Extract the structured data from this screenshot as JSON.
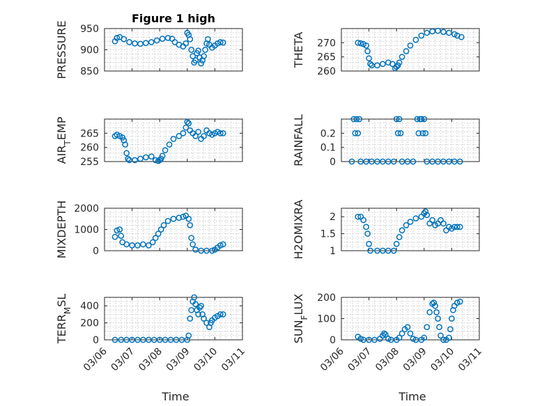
{
  "chart_data": [
    {
      "type": "scatter",
      "title": "Figure 1 high",
      "ylabel": "PRESSURE",
      "ylim": [
        850,
        950
      ],
      "yticks": [
        850,
        900,
        950
      ],
      "color": "#0072bd",
      "points": [
        [
          6.38,
          920
        ],
        [
          6.45,
          928
        ],
        [
          6.55,
          930
        ],
        [
          6.7,
          925
        ],
        [
          6.9,
          918
        ],
        [
          7.1,
          915
        ],
        [
          7.3,
          914
        ],
        [
          7.5,
          916
        ],
        [
          7.7,
          918
        ],
        [
          7.9,
          922
        ],
        [
          8.1,
          926
        ],
        [
          8.3,
          928
        ],
        [
          8.45,
          926
        ],
        [
          8.55,
          918
        ],
        [
          8.7,
          912
        ],
        [
          8.85,
          908
        ],
        [
          8.95,
          915
        ],
        [
          9.0,
          940
        ],
        [
          9.05,
          935
        ],
        [
          9.1,
          925
        ],
        [
          9.15,
          900
        ],
        [
          9.2,
          885
        ],
        [
          9.25,
          870
        ],
        [
          9.3,
          875
        ],
        [
          9.35,
          892
        ],
        [
          9.4,
          898
        ],
        [
          9.45,
          882
        ],
        [
          9.5,
          868
        ],
        [
          9.55,
          875
        ],
        [
          9.6,
          885
        ],
        [
          9.65,
          900
        ],
        [
          9.7,
          915
        ],
        [
          9.75,
          925
        ],
        [
          9.8,
          912
        ],
        [
          9.9,
          905
        ],
        [
          10.0,
          910
        ],
        [
          10.1,
          915
        ],
        [
          10.2,
          918
        ],
        [
          10.3,
          917
        ]
      ]
    },
    {
      "type": "scatter",
      "ylabel": "THETA",
      "ylim": [
        260,
        275
      ],
      "yticks": [
        260,
        265,
        270
      ],
      "color": "#0072bd",
      "points": [
        [
          6.6,
          270
        ],
        [
          6.7,
          269.8
        ],
        [
          6.8,
          269.5
        ],
        [
          6.9,
          269
        ],
        [
          6.95,
          267
        ],
        [
          7.0,
          264.5
        ],
        [
          7.05,
          262.5
        ],
        [
          7.1,
          262
        ],
        [
          7.3,
          262
        ],
        [
          7.5,
          262.5
        ],
        [
          7.7,
          263
        ],
        [
          7.85,
          262.5
        ],
        [
          7.95,
          261
        ],
        [
          8.0,
          261.5
        ],
        [
          8.05,
          262
        ],
        [
          8.1,
          263
        ],
        [
          8.2,
          265
        ],
        [
          8.35,
          267
        ],
        [
          8.5,
          269
        ],
        [
          8.7,
          271
        ],
        [
          8.9,
          272.5
        ],
        [
          9.1,
          273.5
        ],
        [
          9.3,
          274
        ],
        [
          9.5,
          274.2
        ],
        [
          9.7,
          273.8
        ],
        [
          9.9,
          273.5
        ],
        [
          10.1,
          273
        ],
        [
          10.2,
          272.5
        ],
        [
          10.35,
          272
        ]
      ]
    },
    {
      "type": "scatter",
      "ylabel": "AIR_TEMP",
      "ylim": [
        255,
        270
      ],
      "yticks": [
        255,
        260,
        265
      ],
      "color": "#0072bd",
      "points": [
        [
          6.38,
          264
        ],
        [
          6.45,
          264.5
        ],
        [
          6.55,
          264
        ],
        [
          6.65,
          263.5
        ],
        [
          6.7,
          262.5
        ],
        [
          6.75,
          261
        ],
        [
          6.8,
          258
        ],
        [
          6.85,
          256
        ],
        [
          6.9,
          255.5
        ],
        [
          7.1,
          255.5
        ],
        [
          7.3,
          256
        ],
        [
          7.5,
          256.5
        ],
        [
          7.7,
          256.8
        ],
        [
          7.85,
          255.5
        ],
        [
          7.95,
          255.2
        ],
        [
          8.0,
          255.5
        ],
        [
          8.05,
          256
        ],
        [
          8.1,
          257
        ],
        [
          8.2,
          259
        ],
        [
          8.35,
          261
        ],
        [
          8.5,
          263
        ],
        [
          8.7,
          264
        ],
        [
          8.85,
          265
        ],
        [
          8.95,
          267
        ],
        [
          9.0,
          269
        ],
        [
          9.05,
          268.5
        ],
        [
          9.1,
          266
        ],
        [
          9.2,
          265
        ],
        [
          9.3,
          264
        ],
        [
          9.4,
          265.5
        ],
        [
          9.5,
          263
        ],
        [
          9.6,
          264
        ],
        [
          9.7,
          266
        ],
        [
          9.8,
          265
        ],
        [
          9.9,
          264.5
        ],
        [
          10.0,
          265
        ],
        [
          10.1,
          265.5
        ],
        [
          10.2,
          265
        ],
        [
          10.3,
          265
        ]
      ]
    },
    {
      "type": "scatter",
      "ylabel": "RAINFALL",
      "ylim": [
        0,
        0.3
      ],
      "yticks": [
        0,
        0.1,
        0.2
      ],
      "color": "#0072bd",
      "points": [
        [
          6.38,
          0
        ],
        [
          6.45,
          0.3
        ],
        [
          6.5,
          0.2
        ],
        [
          6.55,
          0.3
        ],
        [
          6.6,
          0.2
        ],
        [
          6.65,
          0.3
        ],
        [
          6.7,
          0
        ],
        [
          6.9,
          0
        ],
        [
          7.1,
          0
        ],
        [
          7.3,
          0
        ],
        [
          7.5,
          0
        ],
        [
          7.7,
          0
        ],
        [
          7.9,
          0
        ],
        [
          8.0,
          0.3
        ],
        [
          8.05,
          0.2
        ],
        [
          8.1,
          0.3
        ],
        [
          8.15,
          0.2
        ],
        [
          8.2,
          0
        ],
        [
          8.4,
          0
        ],
        [
          8.6,
          0
        ],
        [
          8.75,
          0.3
        ],
        [
          8.8,
          0.2
        ],
        [
          8.85,
          0.3
        ],
        [
          8.9,
          0.3
        ],
        [
          8.95,
          0.2
        ],
        [
          9.0,
          0.3
        ],
        [
          9.05,
          0.2
        ],
        [
          9.1,
          0
        ],
        [
          9.3,
          0
        ],
        [
          9.5,
          0
        ],
        [
          9.7,
          0
        ],
        [
          9.9,
          0
        ],
        [
          10.1,
          0
        ],
        [
          10.3,
          0
        ]
      ]
    },
    {
      "type": "scatter",
      "ylabel": "MIXDEPTH",
      "ylim": [
        0,
        2000
      ],
      "yticks": [
        0,
        1000,
        2000
      ],
      "color": "#0072bd",
      "points": [
        [
          6.38,
          650
        ],
        [
          6.45,
          950
        ],
        [
          6.55,
          1000
        ],
        [
          6.6,
          700
        ],
        [
          6.65,
          400
        ],
        [
          6.8,
          300
        ],
        [
          7.0,
          250
        ],
        [
          7.2,
          250
        ],
        [
          7.4,
          300
        ],
        [
          7.6,
          250
        ],
        [
          7.75,
          400
        ],
        [
          7.85,
          600
        ],
        [
          7.95,
          800
        ],
        [
          8.05,
          1000
        ],
        [
          8.15,
          1200
        ],
        [
          8.3,
          1400
        ],
        [
          8.5,
          1500
        ],
        [
          8.7,
          1550
        ],
        [
          8.85,
          1600
        ],
        [
          8.95,
          1650
        ],
        [
          9.05,
          1500
        ],
        [
          9.1,
          1200
        ],
        [
          9.15,
          600
        ],
        [
          9.2,
          300
        ],
        [
          9.3,
          50
        ],
        [
          9.5,
          0
        ],
        [
          9.7,
          0
        ],
        [
          9.9,
          0
        ],
        [
          10.0,
          50
        ],
        [
          10.1,
          150
        ],
        [
          10.2,
          250
        ],
        [
          10.3,
          300
        ]
      ]
    },
    {
      "type": "scatter",
      "ylabel": "H2OMIXRA",
      "ylim": [
        1,
        2.25
      ],
      "yticks": [
        1,
        1.5,
        2
      ],
      "color": "#0072bd",
      "points": [
        [
          6.6,
          2.0
        ],
        [
          6.7,
          2.0
        ],
        [
          6.8,
          1.9
        ],
        [
          6.9,
          1.7
        ],
        [
          6.95,
          1.5
        ],
        [
          7.0,
          1.2
        ],
        [
          7.05,
          1.0
        ],
        [
          7.3,
          1.0
        ],
        [
          7.5,
          1.0
        ],
        [
          7.7,
          1.0
        ],
        [
          7.9,
          1.0
        ],
        [
          8.0,
          1.2
        ],
        [
          8.1,
          1.4
        ],
        [
          8.2,
          1.6
        ],
        [
          8.35,
          1.75
        ],
        [
          8.5,
          1.85
        ],
        [
          8.7,
          1.95
        ],
        [
          8.9,
          2.0
        ],
        [
          9.0,
          2.1
        ],
        [
          9.05,
          2.15
        ],
        [
          9.1,
          2.05
        ],
        [
          9.2,
          1.8
        ],
        [
          9.3,
          1.9
        ],
        [
          9.4,
          1.75
        ],
        [
          9.5,
          1.8
        ],
        [
          9.6,
          1.9
        ],
        [
          9.7,
          1.8
        ],
        [
          9.8,
          1.6
        ],
        [
          9.9,
          1.7
        ],
        [
          10.0,
          1.65
        ],
        [
          10.1,
          1.7
        ],
        [
          10.2,
          1.7
        ],
        [
          10.3,
          1.7
        ]
      ]
    },
    {
      "type": "scatter",
      "ylabel": "TERR_MSL",
      "ylim": [
        0,
        500
      ],
      "yticks": [
        0,
        200,
        400
      ],
      "color": "#0072bd",
      "points": [
        [
          6.38,
          0
        ],
        [
          6.6,
          0
        ],
        [
          6.8,
          0
        ],
        [
          7.0,
          0
        ],
        [
          7.2,
          0
        ],
        [
          7.4,
          0
        ],
        [
          7.6,
          0
        ],
        [
          7.8,
          0
        ],
        [
          8.0,
          0
        ],
        [
          8.2,
          0
        ],
        [
          8.4,
          0
        ],
        [
          8.6,
          0
        ],
        [
          8.8,
          0
        ],
        [
          9.0,
          0
        ],
        [
          9.05,
          50
        ],
        [
          9.1,
          250
        ],
        [
          9.15,
          350
        ],
        [
          9.2,
          450
        ],
        [
          9.25,
          500
        ],
        [
          9.3,
          420
        ],
        [
          9.35,
          350
        ],
        [
          9.4,
          300
        ],
        [
          9.45,
          380
        ],
        [
          9.5,
          400
        ],
        [
          9.55,
          300
        ],
        [
          9.6,
          250
        ],
        [
          9.7,
          200
        ],
        [
          9.8,
          150
        ],
        [
          9.85,
          200
        ],
        [
          9.9,
          230
        ],
        [
          10.0,
          260
        ],
        [
          10.1,
          280
        ],
        [
          10.2,
          300
        ],
        [
          10.3,
          300
        ]
      ]
    },
    {
      "type": "scatter",
      "ylabel": "SUN_FLUX",
      "ylim": [
        0,
        200
      ],
      "yticks": [
        0,
        100,
        200
      ],
      "color": "#0072bd",
      "points": [
        [
          6.6,
          15
        ],
        [
          6.7,
          5
        ],
        [
          6.8,
          0
        ],
        [
          7.0,
          0
        ],
        [
          7.2,
          0
        ],
        [
          7.4,
          5
        ],
        [
          7.5,
          20
        ],
        [
          7.55,
          30
        ],
        [
          7.6,
          25
        ],
        [
          7.7,
          5
        ],
        [
          7.8,
          0
        ],
        [
          8.0,
          0
        ],
        [
          8.1,
          10
        ],
        [
          8.2,
          30
        ],
        [
          8.3,
          50
        ],
        [
          8.4,
          60
        ],
        [
          8.5,
          30
        ],
        [
          8.6,
          5
        ],
        [
          8.7,
          0
        ],
        [
          8.9,
          0
        ],
        [
          9.0,
          10
        ],
        [
          9.1,
          60
        ],
        [
          9.2,
          130
        ],
        [
          9.3,
          170
        ],
        [
          9.35,
          175
        ],
        [
          9.4,
          160
        ],
        [
          9.45,
          130
        ],
        [
          9.5,
          100
        ],
        [
          9.55,
          60
        ],
        [
          9.6,
          20
        ],
        [
          9.7,
          0
        ],
        [
          9.8,
          0
        ],
        [
          9.9,
          10
        ],
        [
          9.95,
          50
        ],
        [
          10.0,
          100
        ],
        [
          10.05,
          140
        ],
        [
          10.1,
          160
        ],
        [
          10.2,
          175
        ],
        [
          10.3,
          180
        ]
      ]
    }
  ],
  "x_axis": {
    "xlabel": "Time",
    "xlim": [
      6,
      11
    ],
    "ticks": [
      6,
      7,
      8,
      9,
      10,
      11
    ],
    "ticklabels": [
      "03/06",
      "03/07",
      "03/08",
      "03/09",
      "03/10",
      "03/11"
    ]
  },
  "grid": true,
  "layout": {
    "rows": 4,
    "cols": 2
  }
}
